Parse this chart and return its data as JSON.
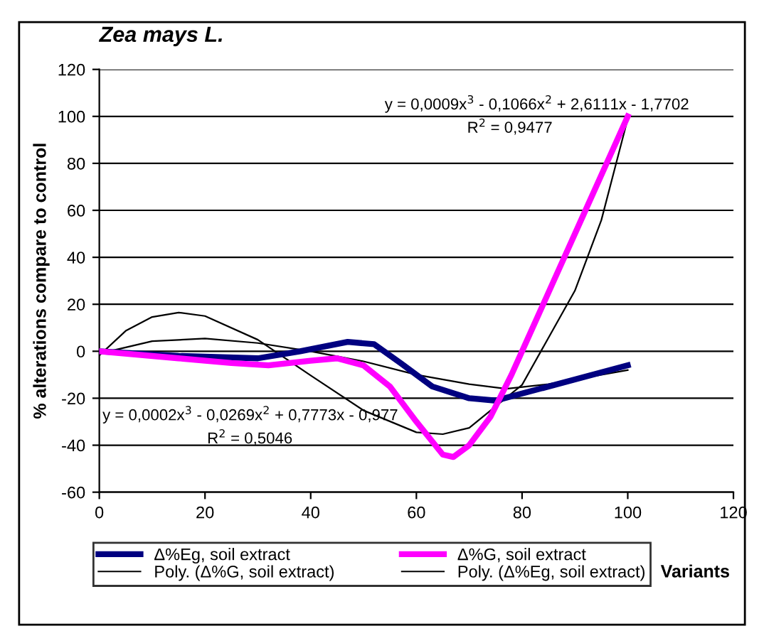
{
  "chart_data": {
    "type": "line",
    "title": "Zea mays L.",
    "xlabel": "Variants",
    "ylabel": "% alterations compare to control",
    "xlim": [
      0,
      120
    ],
    "xticks": [
      0,
      20,
      40,
      60,
      80,
      100,
      120
    ],
    "ylim": [
      -60,
      120
    ],
    "yticks": [
      -60,
      -40,
      -20,
      0,
      20,
      40,
      60,
      80,
      100,
      120
    ],
    "grid": "y",
    "legend": "bottom",
    "marker": "none",
    "line_style": "solid",
    "series": [
      {
        "name": "Δ%Eg, soil extract",
        "color": "#000080",
        "x": [
          0,
          15,
          30,
          38,
          47,
          52,
          57,
          63,
          70,
          75,
          80,
          90,
          100
        ],
        "values": [
          0,
          -2,
          -3,
          0,
          4,
          3,
          -5,
          -15,
          -20,
          -21,
          -18,
          -12,
          -6
        ]
      },
      {
        "name": "Poly. (Δ%G, soil extract)",
        "color": "#000000",
        "x": [
          0,
          5,
          10,
          15,
          20,
          30,
          40,
          50,
          60,
          65,
          70,
          80,
          90,
          95,
          100
        ],
        "values": [
          -1.8,
          8.7,
          14.6,
          16.5,
          15,
          4.9,
          -10.3,
          -25.2,
          -34.5,
          -35.3,
          -32.6,
          -14.3,
          25.8,
          55.8,
          99
        ]
      },
      {
        "name": "Δ%G, soil extract",
        "color": "#ff00ff",
        "x": [
          0,
          15,
          25,
          32,
          40,
          45,
          50,
          55,
          60,
          65,
          67,
          70,
          74,
          78,
          82,
          86,
          91,
          96,
          100
        ],
        "values": [
          0,
          -3,
          -5,
          -6,
          -4,
          -3,
          -6,
          -15,
          -30,
          -44,
          -45,
          -40,
          -28,
          -10,
          10,
          30,
          55,
          80,
          100
        ]
      },
      {
        "name": "Poly. (Δ%Eg, soil extract)",
        "color": "#000000",
        "x": [
          0,
          10,
          20,
          30,
          40,
          50,
          60,
          70,
          77,
          85,
          100
        ],
        "values": [
          -1,
          4.3,
          5.4,
          3.5,
          0,
          -4.3,
          -10,
          -14,
          -16,
          -14,
          -8
        ]
      }
    ],
    "annotations": [
      "y = 0,0009x$^{3}$ - 0,1066x$^{2}$ + 2,6111x - 1,7702",
      "R$^{2}$ = 0,9477",
      "y = 0,0002x$^{3}$ - 0,0269x$^{2}$ + 0,7773x - 0,977",
      "R$^{2}$ = 0,5046"
    ]
  }
}
